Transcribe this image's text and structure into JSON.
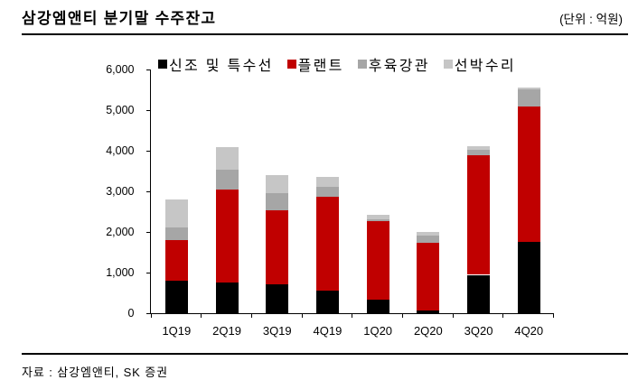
{
  "header": {
    "title": "삼강엠앤티 분기말 수주잔고",
    "unit_label": "(단위 : 억원)"
  },
  "footer": {
    "source_label": "자료 : 삼강엠앤티, SK 증권"
  },
  "chart_data": {
    "type": "bar",
    "stacked": true,
    "title": "삼강엠앤티 분기말 수주잔고",
    "unit": "억원",
    "categories": [
      "1Q19",
      "2Q19",
      "3Q19",
      "4Q19",
      "1Q20",
      "2Q20",
      "3Q20",
      "4Q20"
    ],
    "series": [
      {
        "name": "신조 및 특수선",
        "color": "#000000",
        "values": [
          800,
          760,
          720,
          560,
          350,
          70,
          950,
          1760
        ]
      },
      {
        "name": "플랜트",
        "color": "#c00000",
        "values": [
          1000,
          2280,
          1810,
          2310,
          1930,
          1660,
          2950,
          3340
        ]
      },
      {
        "name": "후육강관",
        "color": "#a6a6a6",
        "values": [
          320,
          500,
          430,
          250,
          40,
          180,
          130,
          420
        ]
      },
      {
        "name": "선박수리",
        "color": "#c6c6c6",
        "values": [
          680,
          540,
          440,
          230,
          100,
          90,
          90,
          40
        ]
      }
    ],
    "totals": [
      2800,
      4080,
      3400,
      3350,
      2420,
      2000,
      4120,
      5560
    ],
    "ylim": [
      0,
      6000
    ],
    "ytick_step": 1000,
    "ytick_labels": [
      "0",
      "1,000",
      "2,000",
      "3,000",
      "4,000",
      "5,000",
      "6,000"
    ],
    "grid": false,
    "legend_position": "top"
  }
}
